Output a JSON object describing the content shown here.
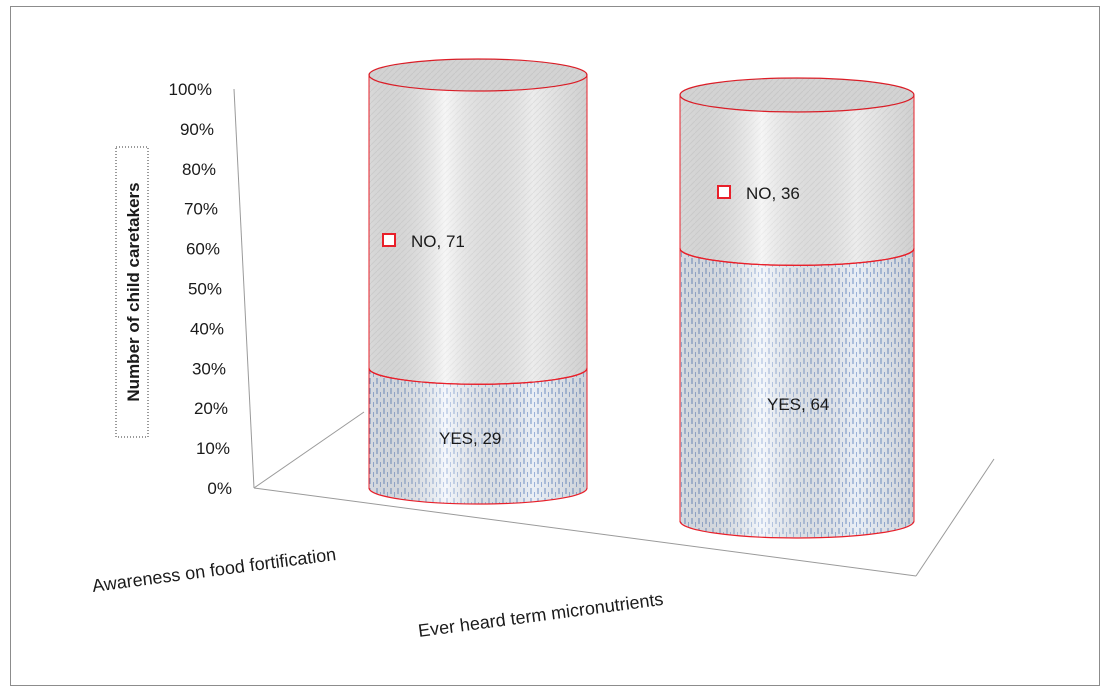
{
  "chart_data": {
    "type": "bar",
    "stacked": true,
    "percent_stacked": true,
    "style": "3d-cylinder",
    "categories": [
      "Awareness on food fortification",
      "Ever heard term micronutrients"
    ],
    "series": [
      {
        "name": "YES",
        "values": [
          29,
          64
        ],
        "fill": "#c9d8ee",
        "pattern": "dashed-vertical"
      },
      {
        "name": "NO",
        "values": [
          71,
          36
        ],
        "fill": "#ececec",
        "pattern": "light-texture"
      }
    ],
    "data_labels": [
      [
        "YES, 29",
        "YES, 64"
      ],
      [
        "NO, 71",
        "NO, 36"
      ]
    ],
    "ylabel": "Number of child caretakers",
    "xlabel": "",
    "title": "",
    "ylim": [
      0,
      100
    ],
    "yticks": [
      "0%",
      "10%",
      "20%",
      "30%",
      "40%",
      "50%",
      "60%",
      "70%",
      "80%",
      "90%",
      "100%"
    ],
    "grid": false,
    "outline_color": "#e8202a",
    "legend_marker_series": "NO"
  }
}
